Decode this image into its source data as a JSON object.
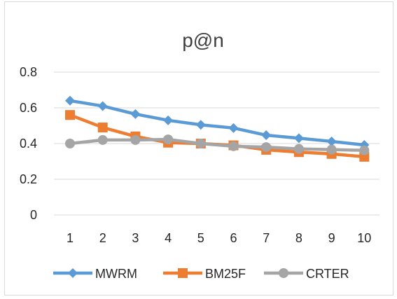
{
  "chart_data": {
    "type": "line",
    "title": "p@n",
    "xlabel": "",
    "ylabel": "",
    "categories": [
      "1",
      "2",
      "3",
      "4",
      "5",
      "6",
      "7",
      "8",
      "9",
      "10"
    ],
    "ylim": [
      0,
      0.8
    ],
    "yticks": [
      "0",
      "0.2",
      "0.4",
      "0.6",
      "0.8"
    ],
    "grid": true,
    "legend_position": "bottom",
    "series": [
      {
        "name": "MWRM",
        "color": "#5B9BD5",
        "marker": "diamond",
        "values": [
          0.64,
          0.61,
          0.565,
          0.53,
          0.505,
          0.487,
          0.447,
          0.43,
          0.412,
          0.392
        ]
      },
      {
        "name": "BM25F",
        "color": "#ED7D31",
        "marker": "square",
        "values": [
          0.56,
          0.49,
          0.44,
          0.405,
          0.4,
          0.39,
          0.365,
          0.352,
          0.342,
          0.326
        ]
      },
      {
        "name": "CRTER",
        "color": "#A5A5A5",
        "marker": "circle",
        "values": [
          0.4,
          0.42,
          0.42,
          0.423,
          0.4,
          0.385,
          0.38,
          0.37,
          0.366,
          0.362
        ]
      }
    ]
  }
}
